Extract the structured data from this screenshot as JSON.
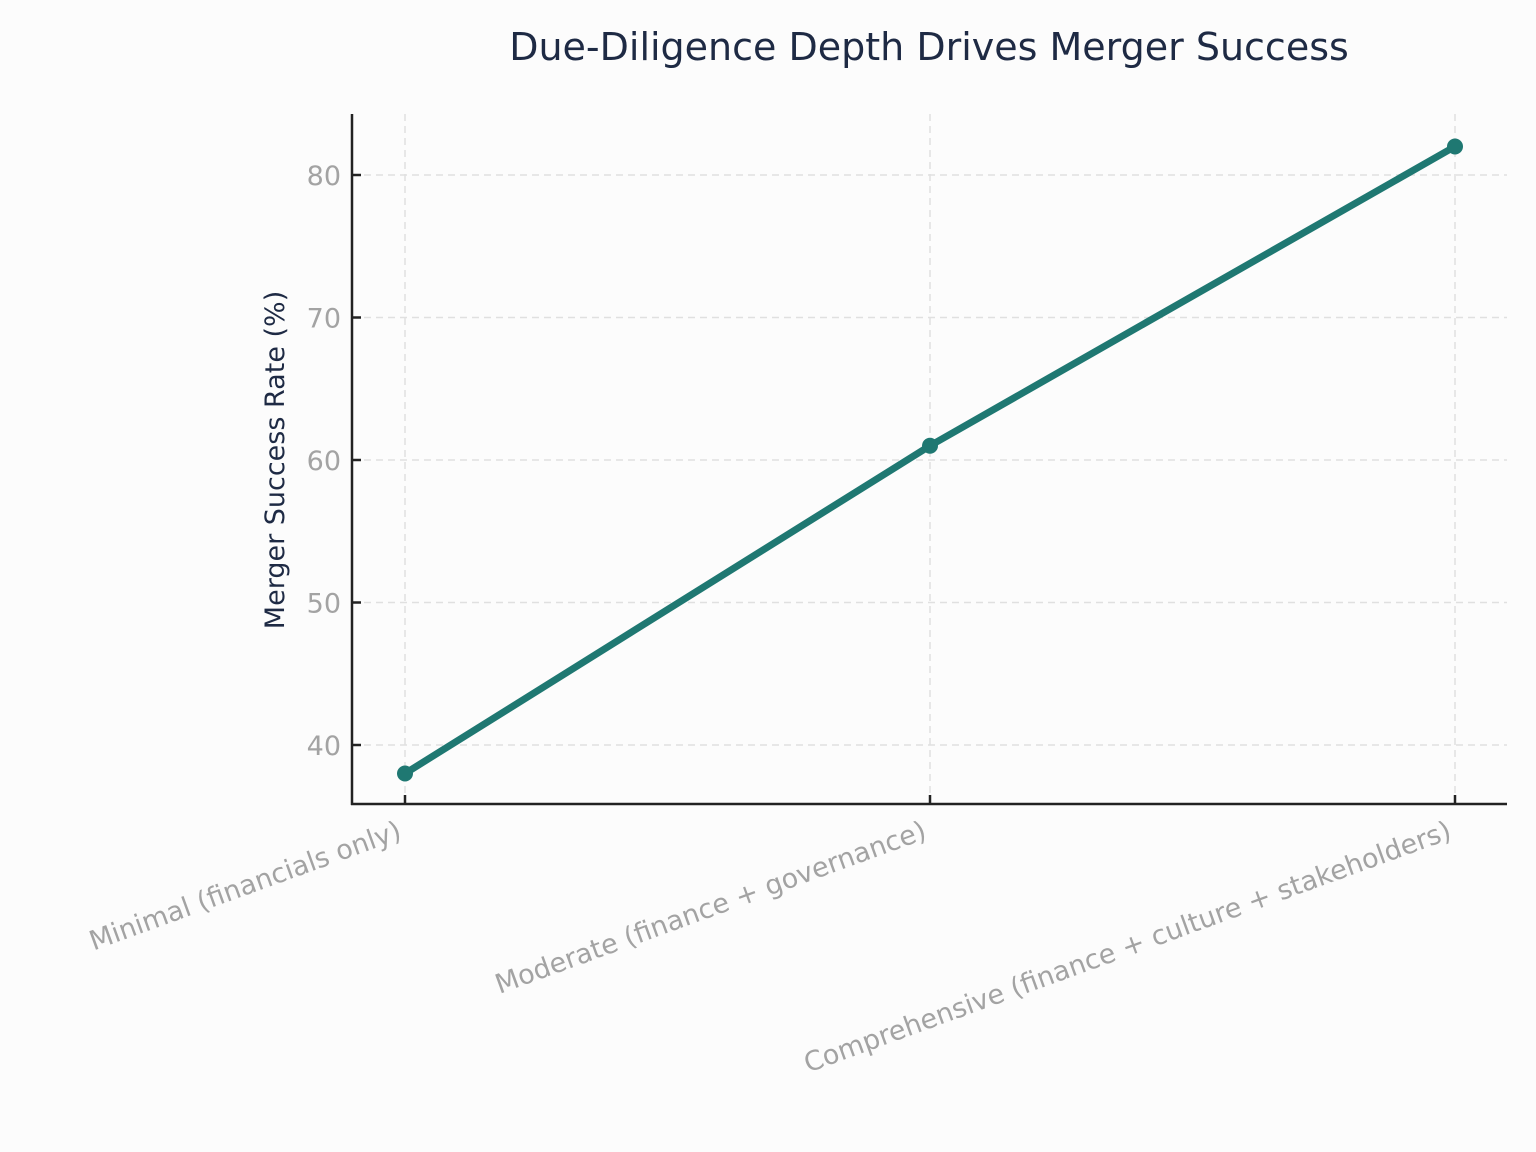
{
  "chart_data": {
    "type": "line",
    "title": "Due-Diligence Depth Drives Merger Success",
    "xlabel": "",
    "ylabel": "Merger Success Rate (%)",
    "categories": [
      "Minimal (financials only)",
      "Moderate (finance + governance)",
      "Comprehensive (finance + culture + stakeholders)"
    ],
    "series": [
      {
        "name": "Merger Success Rate (%)",
        "values": [
          38,
          61,
          82
        ],
        "color": "#1f7872"
      }
    ],
    "ylim": [
      35.9,
      84.3
    ],
    "yticks": [
      40,
      50,
      60,
      70,
      80
    ],
    "grid": true,
    "legend": null,
    "colors": {
      "line": "#1f7872",
      "title": "#1e2a44",
      "tick_label": "#a3a3a3",
      "grid": "#e0e0e0",
      "spine": "#222222",
      "background": "#fcfcfc"
    }
  }
}
